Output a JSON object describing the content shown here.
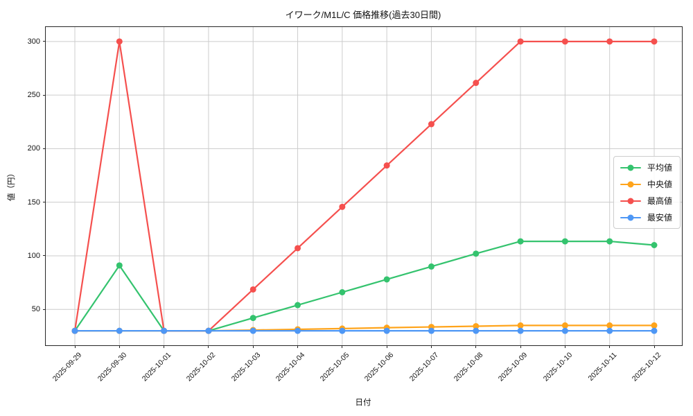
{
  "chart_data": {
    "type": "line",
    "title": "イワーク/M1L/C 価格推移(過去30日間)",
    "xlabel": "日付",
    "ylabel": "値（円）",
    "x": [
      "2025-09-29",
      "2025-09-30",
      "2025-10-01",
      "2025-10-02",
      "2025-10-03",
      "2025-10-04",
      "2025-10-05",
      "2025-10-06",
      "2025-10-07",
      "2025-10-08",
      "2025-10-09",
      "2025-10-10",
      "2025-10-11",
      "2025-10-12"
    ],
    "series": [
      {
        "key": "average",
        "name": "平均値",
        "color": "#34c36e",
        "values": [
          30,
          91,
          30,
          30,
          42,
          54,
          66,
          78,
          90,
          102,
          113.5,
          113.5,
          113.5,
          110
        ]
      },
      {
        "key": "median",
        "name": "中央値",
        "color": "#ffa41b",
        "values": [
          30,
          30,
          30,
          30,
          30.7,
          31.4,
          32.1,
          32.9,
          33.6,
          34.3,
          35,
          35,
          35,
          35
        ]
      },
      {
        "key": "max",
        "name": "最高値",
        "color": "#f5504e",
        "values": [
          30,
          300,
          30,
          30,
          68.6,
          107.1,
          145.7,
          184.3,
          222.9,
          261.4,
          300,
          300,
          300,
          300
        ]
      },
      {
        "key": "min",
        "name": "最安値",
        "color": "#4e97f5",
        "values": [
          30,
          30,
          30,
          30,
          30,
          30,
          30,
          30,
          30,
          30,
          30,
          30,
          30,
          30
        ]
      }
    ],
    "ylim": [
      16.5,
      313.5
    ],
    "yticks": [
      50,
      100,
      150,
      200,
      250,
      300
    ],
    "grid": true,
    "grid_color": "#cccccc",
    "legend_position": "right",
    "background": "#ffffff"
  }
}
